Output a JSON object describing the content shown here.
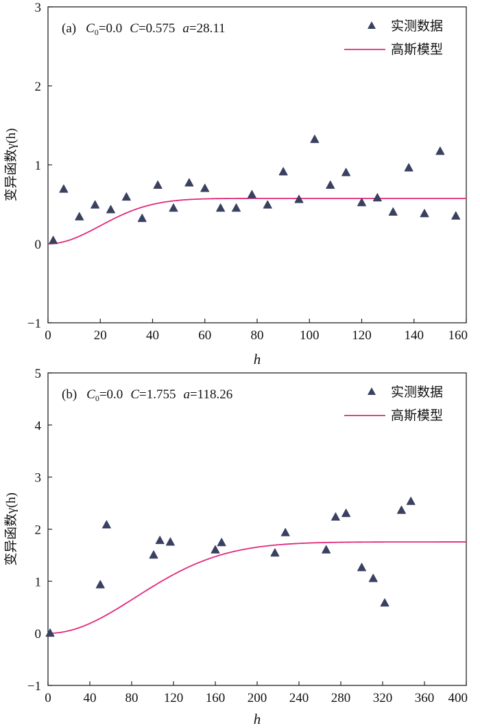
{
  "chart_data": [
    {
      "type": "scatter",
      "panel_label": "(a)",
      "annotation": {
        "c0_symbol": "C",
        "c0_sub": "0",
        "c0_value": "=0.0",
        "c_symbol": "C",
        "c_value": "=0.575",
        "a_symbol": "a",
        "a_value": "=28.11"
      },
      "xlabel": "h",
      "ylabel": "变异函数γ(h)",
      "xlim": [
        0,
        160
      ],
      "ylim": [
        -1,
        3
      ],
      "xticks": [
        0,
        20,
        40,
        60,
        80,
        100,
        120,
        140,
        160
      ],
      "yticks": [
        -1,
        0,
        1,
        2,
        3
      ],
      "ytick_labels": [
        "−1",
        "0",
        "1",
        "2",
        "3"
      ],
      "legend": {
        "position": "top-right",
        "points_label": "实测数据",
        "line_label": "高斯模型"
      },
      "model": {
        "name": "高斯模型",
        "nugget": 0.0,
        "sill": 0.575,
        "range": 28.11,
        "color": "#e0287a"
      },
      "points_color": "#3a4160",
      "series": [
        {
          "name": "实测数据",
          "x": [
            2,
            6,
            12,
            18,
            24,
            30,
            36,
            42,
            48,
            54,
            60,
            66,
            72,
            78,
            84,
            90,
            96,
            102,
            108,
            114,
            120,
            126,
            132,
            138,
            144,
            150,
            156
          ],
          "y": [
            0.04,
            0.69,
            0.34,
            0.49,
            0.43,
            0.59,
            0.32,
            0.74,
            0.45,
            0.77,
            0.7,
            0.45,
            0.45,
            0.62,
            0.49,
            0.91,
            0.56,
            1.32,
            0.74,
            0.9,
            0.52,
            0.58,
            0.4,
            0.96,
            0.38,
            1.17,
            0.35
          ]
        }
      ]
    },
    {
      "type": "scatter",
      "panel_label": "(b)",
      "annotation": {
        "c0_symbol": "C",
        "c0_sub": "0",
        "c0_value": "=0.0",
        "c_symbol": "C",
        "c_value": "=1.755",
        "a_symbol": "a",
        "a_value": "=118.26"
      },
      "xlabel": "h",
      "ylabel": "变异函数γ(h)",
      "xlim": [
        0,
        400
      ],
      "ylim": [
        -1,
        5
      ],
      "xticks": [
        0,
        40,
        80,
        120,
        160,
        200,
        240,
        280,
        320,
        360,
        400
      ],
      "yticks": [
        -1,
        0,
        1,
        2,
        3,
        4,
        5
      ],
      "ytick_labels": [
        "−1",
        "0",
        "1",
        "2",
        "3",
        "4",
        "5"
      ],
      "legend": {
        "position": "top-right",
        "points_label": "实测数据",
        "line_label": "高斯模型"
      },
      "model": {
        "name": "高斯模型",
        "nugget": 0.0,
        "sill": 1.755,
        "range": 118.26,
        "color": "#e0287a"
      },
      "points_color": "#3a4160",
      "series": [
        {
          "name": "实测数据",
          "x": [
            2,
            50,
            56,
            101,
            107,
            117,
            160,
            166,
            217,
            227,
            266,
            275,
            285,
            300,
            311,
            322,
            338,
            347
          ],
          "y": [
            0.0,
            0.93,
            2.08,
            1.5,
            1.78,
            1.75,
            1.6,
            1.74,
            1.54,
            1.93,
            1.6,
            2.23,
            2.3,
            1.26,
            1.05,
            0.58,
            2.36,
            2.53
          ]
        }
      ]
    }
  ]
}
